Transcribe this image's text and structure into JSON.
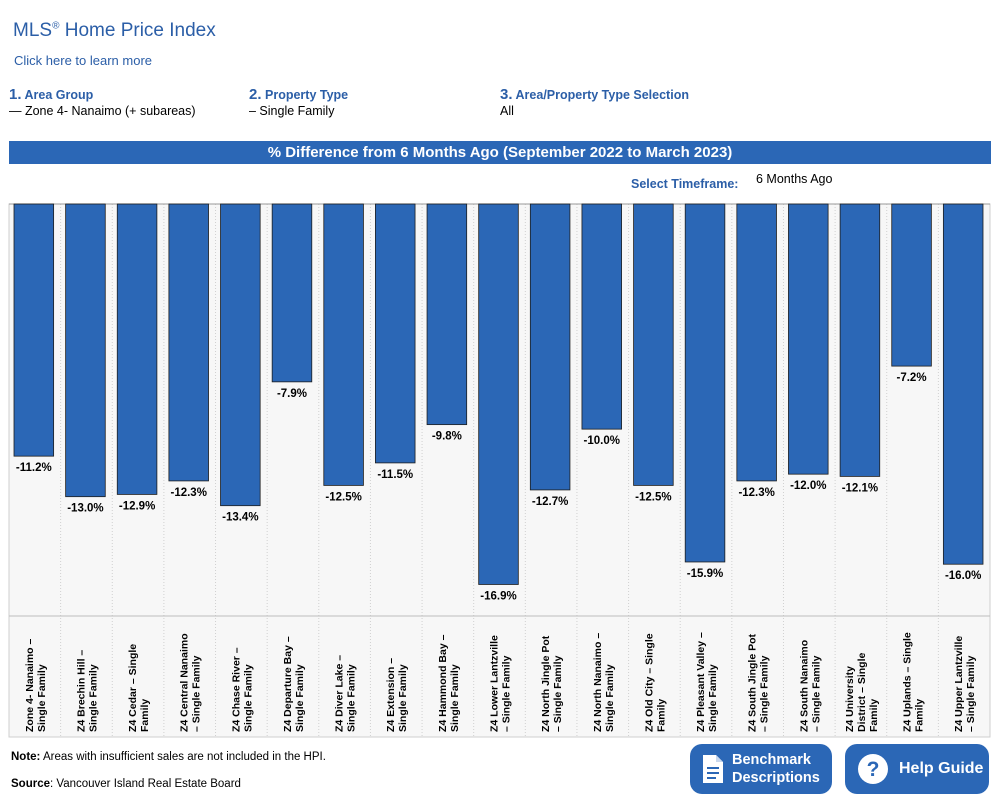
{
  "header": {
    "title_main": "MLS",
    "title_reg": "®",
    "title_rest": " Home Price Index",
    "learn_more": "Click here to learn more"
  },
  "steps": [
    {
      "num": "1.",
      "label": "Area Group",
      "value": "— Zone 4- Nanaimo (+ subareas)"
    },
    {
      "num": "2.",
      "label": "Property Type",
      "value": "– Single Family"
    },
    {
      "num": "3.",
      "label": "Area/Property Type Selection",
      "value": "All"
    }
  ],
  "timeframe": {
    "label": "Select Timeframe:",
    "value": "6 Months Ago"
  },
  "chart_data": {
    "type": "bar",
    "title": "% Difference from 6 Months Ago (September 2022 to March 2023)",
    "categories": [
      [
        "Zone 4- Nanaimo –",
        "Single Family"
      ],
      [
        "Z4 Brechin Hill –",
        "Single Family"
      ],
      [
        "Z4 Cedar – Single",
        "Family"
      ],
      [
        "Z4 Central Nanaimo",
        "– Single Family"
      ],
      [
        "Z4 Chase River –",
        "Single Family"
      ],
      [
        "Z4 Departure Bay –",
        "Single Family"
      ],
      [
        "Z4 Diver Lake –",
        "Single Family"
      ],
      [
        "Z4 Extension –",
        "Single Family"
      ],
      [
        "Z4 Hammond Bay –",
        "Single Family"
      ],
      [
        "Z4 Lower Lantzville",
        "– Single Family"
      ],
      [
        "Z4 North Jingle Pot",
        "– Single Family"
      ],
      [
        "Z4 North Nanaimo –",
        "Single Family"
      ],
      [
        "Z4 Old City – Single",
        "Family"
      ],
      [
        "Z4 Pleasant Valley –",
        "Single Family"
      ],
      [
        "Z4 South Jingle Pot",
        "– Single Family"
      ],
      [
        "Z4 South Nanaimo",
        "– Single Family"
      ],
      [
        "Z4 University",
        "District – Single",
        "Family"
      ],
      [
        "Z4 Uplands – Single",
        "Family"
      ],
      [
        "Z4 Upper Lantzville",
        "– Single Family"
      ]
    ],
    "values": [
      -11.2,
      -13.0,
      -12.9,
      -12.3,
      -13.4,
      -7.9,
      -12.5,
      -11.5,
      -9.8,
      -16.9,
      -12.7,
      -10.0,
      -12.5,
      -15.9,
      -12.3,
      -12.0,
      -12.1,
      -7.2,
      -16.0
    ],
    "labels": [
      "-11.2%",
      "-13.0%",
      "-12.9%",
      "-12.3%",
      "-13.4%",
      "-7.9%",
      "-12.5%",
      "-11.5%",
      "-9.8%",
      "-16.9%",
      "-12.7%",
      "-10.0%",
      "-12.5%",
      "-15.9%",
      "-12.3%",
      "-12.0%",
      "-12.1%",
      "-7.2%",
      "-16.0%"
    ],
    "ylim": [
      -18.3,
      0
    ],
    "color": "#2b67b6"
  },
  "footer": {
    "note_label": "Note:",
    "note_text": " Areas with insufficient sales are not included in the HPI.",
    "source_label": "Source",
    "source_text": ": Vancouver Island Real Estate Board"
  },
  "buttons": {
    "benchmark_line1": "Benchmark",
    "benchmark_line2": "Descriptions",
    "help": "Help Guide",
    "icon_doc": "document-icon",
    "icon_help": "question-circle-icon"
  }
}
